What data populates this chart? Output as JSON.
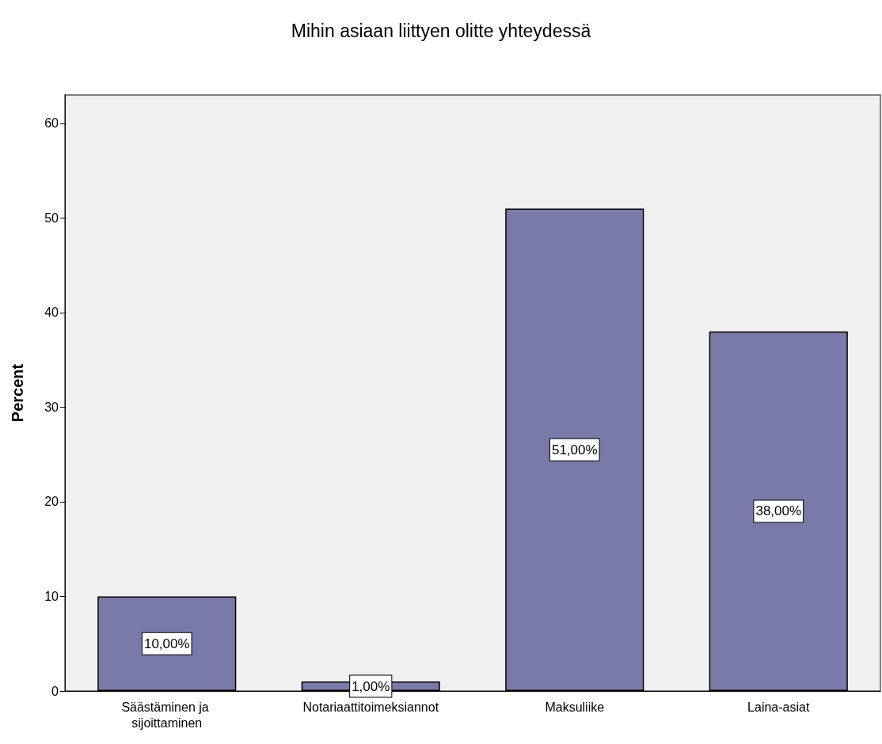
{
  "chart_data": {
    "type": "bar",
    "title": "Mihin asiaan liittyen olitte yhteydessä",
    "ylabel": "Percent",
    "categories": [
      "Säästäminen ja sijoittaminen",
      "Notariaattitoimeksiannot",
      "Maksuliike",
      "Laina-asiat"
    ],
    "values": [
      10,
      1,
      51,
      38
    ],
    "value_labels": [
      "10,00%",
      "1,00%",
      "51,00%",
      "38,00%"
    ],
    "color": "#7a7aa8",
    "ylim": [
      0,
      63
    ],
    "yticks": [
      0,
      10,
      20,
      30,
      40,
      50,
      60
    ],
    "grid": false
  }
}
